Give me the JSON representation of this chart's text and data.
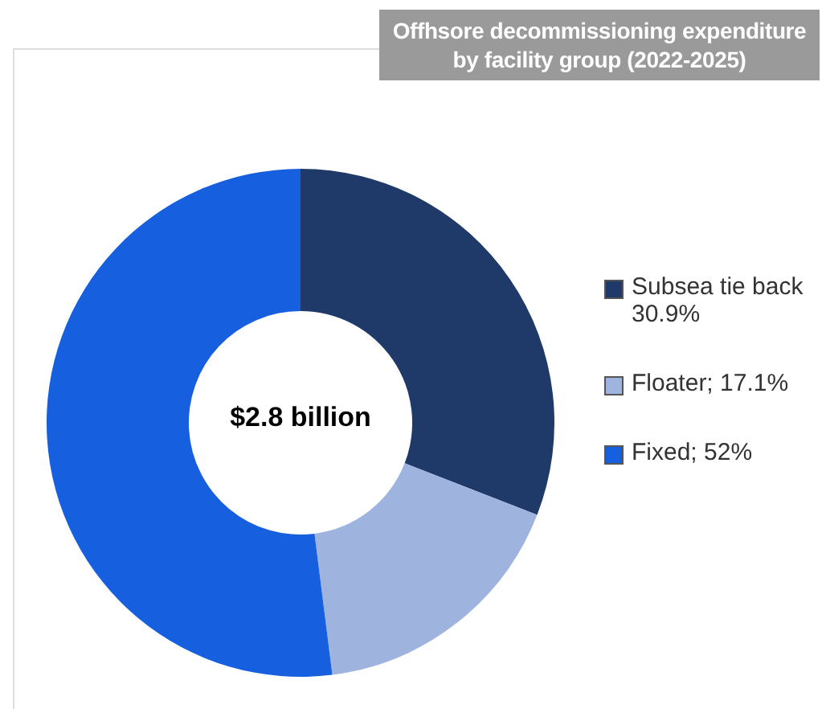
{
  "chart_data": {
    "type": "donut",
    "title": "Offhsore decommissioning expenditure by facility group (2022-2025)",
    "categories": [
      "Subsea tie back",
      "Floater",
      "Fixed"
    ],
    "values": [
      30.9,
      17.1,
      52
    ],
    "value_labels": [
      "30.9%",
      "17.1%",
      "52%"
    ],
    "colors": [
      "#1f3a68",
      "#9fb3df",
      "#1660e0"
    ],
    "legend": "right",
    "annotations": [
      "$2.8 billion"
    ]
  }
}
